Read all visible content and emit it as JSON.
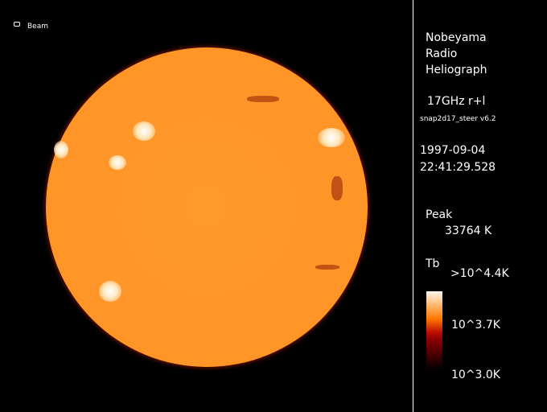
{
  "beam_label": "Beam",
  "observatory": [
    "Nobeyama",
    "Radio",
    "Heliograph"
  ],
  "frequency": "17GHz r+l",
  "software": "snap2d17_steer v6.2",
  "date": "1997-09-04",
  "time": "22:41:29.528",
  "peak_label": "Peak",
  "peak_value": "33764 K",
  "tb_label": "Tb",
  "colorbar": {
    "max_label": ">10^4.4K",
    "mid_label": "10^3.7K",
    "min_label": "10^3.0K"
  },
  "colors": {
    "sun": "#ff9326",
    "background": "#000000",
    "text": "#ffffff"
  }
}
